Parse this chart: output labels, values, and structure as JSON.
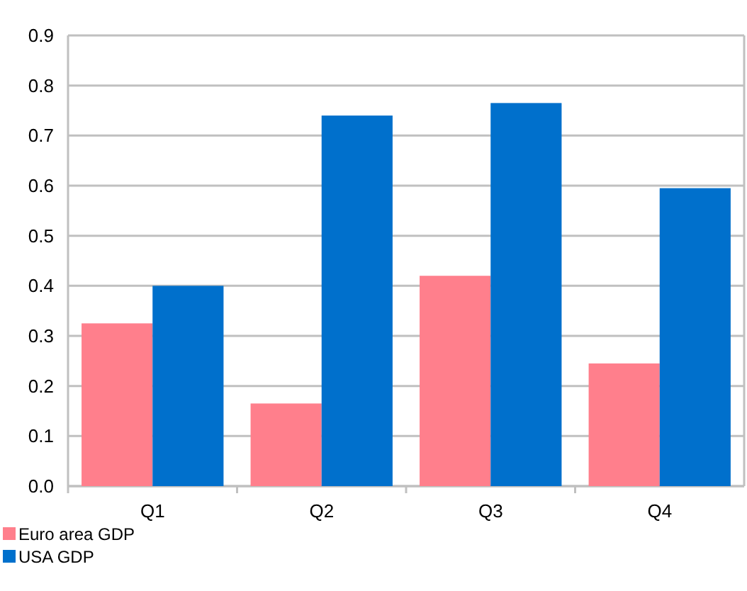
{
  "chart_data": {
    "type": "bar",
    "categories": [
      "Q1",
      "Q2",
      "Q3",
      "Q4"
    ],
    "series": [
      {
        "name": "Euro area GDP",
        "color": "#ff7f8c",
        "values": [
          0.325,
          0.165,
          0.42,
          0.245
        ]
      },
      {
        "name": "USA GDP",
        "color": "#0070cc",
        "values": [
          0.4,
          0.74,
          0.765,
          0.595
        ]
      }
    ],
    "ylim": [
      0,
      0.9
    ],
    "yticks": [
      {
        "value": 0,
        "label": "0.0"
      },
      0.1,
      0.2,
      0.3,
      0.4,
      0.5,
      0.6,
      0.7,
      0.8,
      0.9
    ],
    "grid": "y",
    "legend": "bottom left"
  }
}
